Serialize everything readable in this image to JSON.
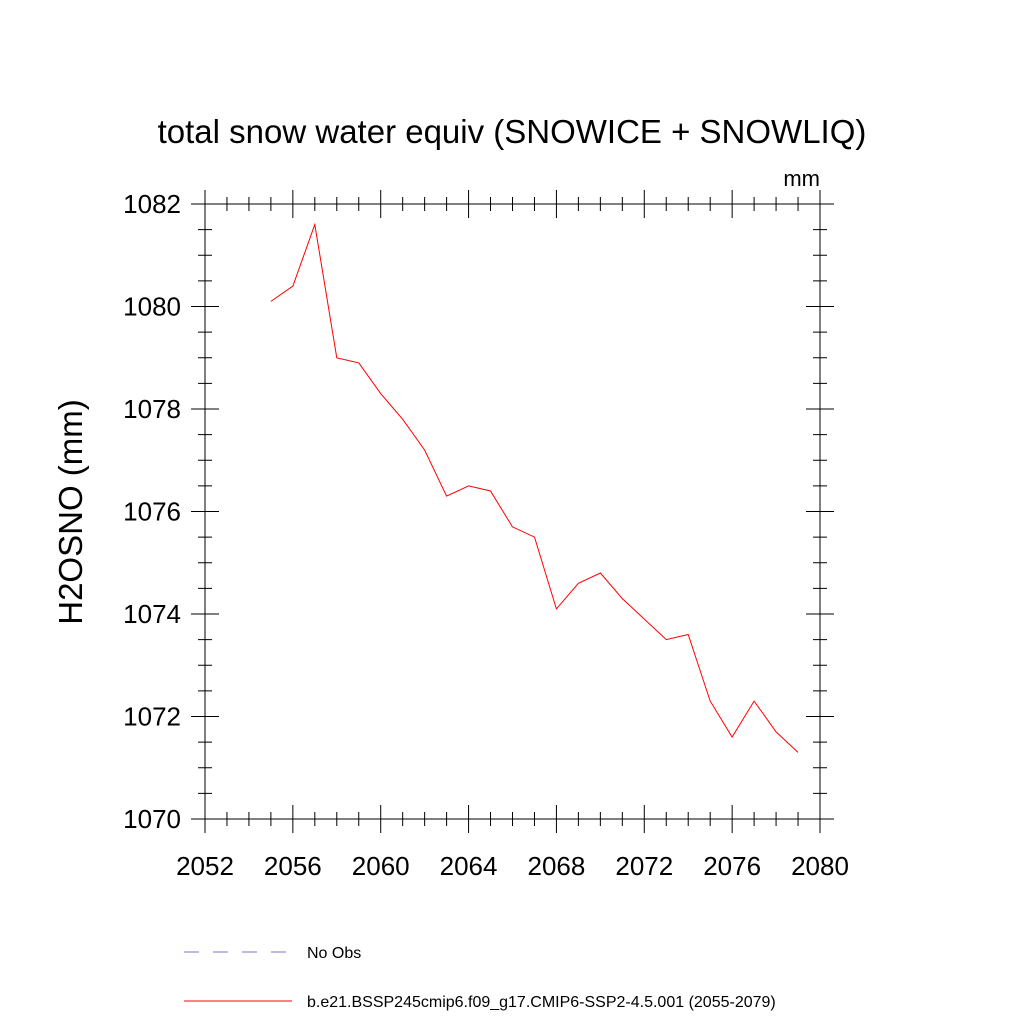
{
  "chart_data": {
    "type": "line",
    "title": "total snow water equiv (SNOWICE + SNOWLIQ)",
    "units": "mm",
    "ylabel": "H2OSNO  (mm)",
    "xlabel": "",
    "xlim": [
      2052,
      2080
    ],
    "ylim": [
      1070,
      1082
    ],
    "xticks": [
      2052,
      2056,
      2060,
      2064,
      2068,
      2072,
      2076,
      2080
    ],
    "yticks": [
      1070,
      1072,
      1074,
      1076,
      1078,
      1080,
      1082
    ],
    "grid": false,
    "legend_placement": "bottom",
    "series": [
      {
        "name": "b.e21.BSSP245cmip6.f09_g17.CMIP6-SSP2-4.5.001 (2055-2079)",
        "color": "#ff0000",
        "style": "solid",
        "x": [
          2055,
          2056,
          2057,
          2058,
          2059,
          2060,
          2061,
          2062,
          2063,
          2064,
          2065,
          2066,
          2067,
          2068,
          2069,
          2070,
          2071,
          2072,
          2073,
          2074,
          2075,
          2076,
          2077,
          2078,
          2079
        ],
        "y": [
          1080.1,
          1080.4,
          1081.6,
          1079.0,
          1078.9,
          1078.3,
          1077.8,
          1077.2,
          1076.3,
          1076.5,
          1076.4,
          1075.7,
          1075.5,
          1074.1,
          1074.6,
          1074.8,
          1074.3,
          1073.9,
          1073.5,
          1073.6,
          1072.3,
          1071.6,
          1072.3,
          1071.7,
          1071.3
        ]
      }
    ],
    "legend": [
      {
        "name": "No Obs",
        "color": "#7777cc",
        "style": "dashed"
      },
      {
        "name": "b.e21.BSSP245cmip6.f09_g17.CMIP6-SSP2-4.5.001 (2055-2079)",
        "color": "#ff0000",
        "style": "solid"
      }
    ]
  }
}
